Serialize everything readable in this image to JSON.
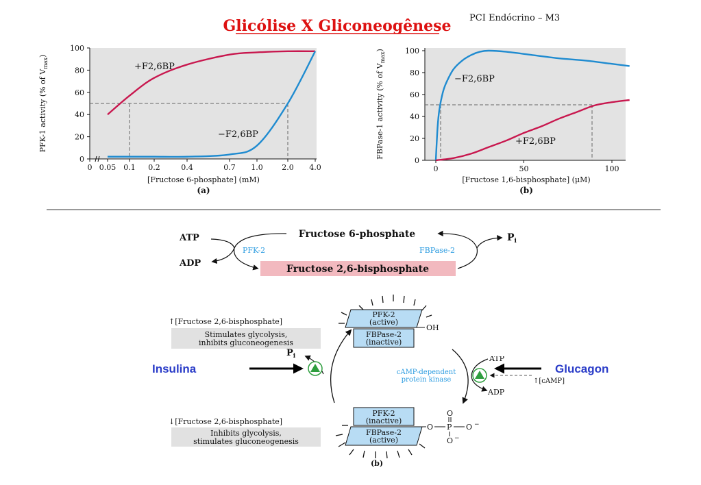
{
  "header": {
    "title": "Glicólise X Gliconeogênese",
    "corner": "PCI Endócrino – M3"
  },
  "colors": {
    "title": "#dd1111",
    "pink_curve": "#c8174e",
    "blue_curve": "#1f8bd0",
    "plot_bg": "#e3e3e3",
    "label_blue": "#2a9be0",
    "hormone_blue": "#2a3cc8",
    "pink_box": "#f2b9bf",
    "grey_box": "#e1e1e1",
    "enzyme_box": "#b8dcf4",
    "kinase_green": "#2e9e3e"
  },
  "chart_a": {
    "ylabel": "PFK-1 activity (% of V",
    "ylabel_sub": "max",
    "ylabel_end": ")",
    "xlabel": "[Fructose 6-phosphate] (mM)",
    "caption": "(a)",
    "y_ticks": [
      "0",
      "20",
      "40",
      "60",
      "80",
      "100"
    ],
    "x_ticks": [
      "0",
      "0.05",
      "0.1",
      "0.2",
      "0.4",
      "0.7",
      "1.0",
      "2.0",
      "4.0"
    ],
    "label_plus": "+F2,6BP",
    "label_minus": "−F2,6BP"
  },
  "chart_b": {
    "ylabel": "FBPase-1 activity (% of V",
    "ylabel_sub": "max",
    "ylabel_end": ")",
    "xlabel": "[Fructose 1,6-bisphosphate] (μM)",
    "caption": "(b)",
    "y_ticks": [
      "0",
      "20",
      "40",
      "60",
      "80",
      "100"
    ],
    "x_ticks": [
      "0",
      "50",
      "100"
    ],
    "label_minus": "−F2,6BP",
    "label_plus": "+F2,6BP"
  },
  "chart_data": [
    {
      "type": "line",
      "title": "",
      "xlabel": "[Fructose 6-phosphate] (mM)",
      "ylabel": "PFK-1 activity (% of Vmax)",
      "x_tick_labels": [
        "0",
        "0.05",
        "0.1",
        "0.2",
        "0.4",
        "0.7",
        "1.0",
        "2.0",
        "4.0"
      ],
      "ylim": [
        0,
        100
      ],
      "grid": false,
      "series": [
        {
          "name": "+F2,6BP",
          "x": [
            0.05,
            0.1,
            0.2,
            0.4,
            0.7,
            1.0,
            2.0,
            4.0
          ],
          "y": [
            40,
            57,
            73,
            85,
            94,
            96,
            97,
            97
          ]
        },
        {
          "name": "−F2,6BP",
          "x": [
            0.05,
            0.1,
            0.2,
            0.4,
            0.7,
            1.0,
            2.0,
            4.0
          ],
          "y": [
            2,
            2,
            2,
            2,
            4,
            12,
            50,
            97
          ]
        }
      ],
      "reference_lines": [
        {
          "y": 50,
          "x_plus": 0.07,
          "x_minus": 2.0
        }
      ]
    },
    {
      "type": "line",
      "title": "",
      "xlabel": "[Fructose 1,6-bisphosphate] (μM)",
      "ylabel": "FBPase-1 activity (% of Vmax)",
      "xlim": [
        0,
        110
      ],
      "ylim": [
        0,
        100
      ],
      "grid": false,
      "series": [
        {
          "name": "−F2,6BP",
          "x": [
            0,
            1,
            2,
            4,
            6,
            10,
            15,
            20,
            25,
            30,
            40,
            55,
            70,
            85,
            100,
            110
          ],
          "y": [
            0,
            30,
            46,
            62,
            71,
            83,
            91,
            96,
            99,
            100,
            99,
            96,
            93,
            91,
            88,
            86
          ]
        },
        {
          "name": "+F2,6BP",
          "x": [
            0,
            10,
            20,
            30,
            40,
            50,
            60,
            70,
            80,
            90,
            100,
            110
          ],
          "y": [
            0,
            2,
            6,
            12,
            18,
            25,
            31,
            38,
            44,
            50,
            53,
            55
          ]
        }
      ],
      "reference_lines": [
        {
          "y": 50,
          "x_minus": 3,
          "x_plus": 88
        }
      ]
    }
  ],
  "cycle": {
    "f6p": "Fructose 6-phosphate",
    "f26bp": "Fructose 2,6-bisphosphate",
    "atp": "ATP",
    "adp": "ADP",
    "pi": "P",
    "pi_sub": "i",
    "pfk2": "PFK-2",
    "fbpase2": "FBPase-2"
  },
  "regulation": {
    "up_text": "↑[Fructose 2,6-bisphosphate]",
    "up_box_line1": "Stimulates glycolysis,",
    "up_box_line2": "inhibits gluconeogenesis",
    "down_text": "↓[Fructose 2,6-bisphosphate]",
    "down_box_line1": "Inhibits glycolysis,",
    "down_box_line2": "stimulates gluconeogenesis",
    "top_pfk2_line1": "PFK-2",
    "top_pfk2_line2": "(active)",
    "top_fbp_line1": "FBPase-2",
    "top_fbp_line2": "(inactive)",
    "oh": "OH",
    "bot_pfk2_line1": "PFK-2",
    "bot_pfk2_line2": "(inactive)",
    "bot_fbp_line1": "FBPase-2",
    "bot_fbp_line2": "(active)",
    "phosphate_o_top": "O",
    "phosphate_o_left": "O",
    "phosphate_p": "P",
    "phosphate_o_right": "O",
    "phosphate_o_bottom": "O",
    "pi": "P",
    "pi_sub": "i",
    "kinase_line1": "cAMP-dependent",
    "kinase_line2": "protein kinase",
    "atp_partial": "ATP",
    "camp_partial": "Glucagon",
    "camp": "↑[cAMP]",
    "adp": "ADP",
    "caption": "(b)",
    "insulina": "Insulina",
    "glucagon": "Glucagon"
  }
}
